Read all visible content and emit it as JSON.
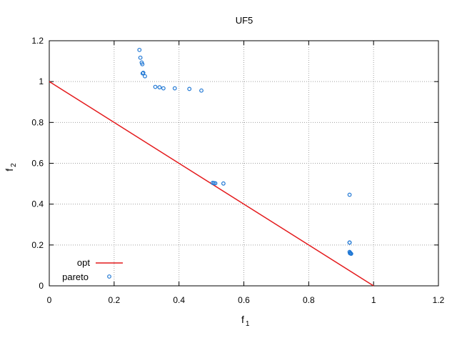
{
  "chart_data": {
    "type": "scatter",
    "title": "UF5",
    "xlabel": {
      "main": "f",
      "sub": "1"
    },
    "ylabel": {
      "main": "f",
      "sub": "2"
    },
    "xlim": [
      0,
      1.2
    ],
    "ylim": [
      0,
      1.2
    ],
    "x_ticks": [
      0,
      0.2,
      0.4,
      0.6,
      0.8,
      1,
      1.2
    ],
    "x_tick_labels": [
      "0",
      "0.2",
      "0.4",
      "0.6",
      "0.8",
      "1",
      "1.2"
    ],
    "y_ticks": [
      0,
      0.2,
      0.4,
      0.6,
      0.8,
      1,
      1.2
    ],
    "y_tick_labels": [
      "0",
      "0.2",
      "0.4",
      "0.6",
      "0.8",
      "1",
      "1.2"
    ],
    "grid": true,
    "legend": {
      "placement": "bottom-left"
    },
    "series": [
      {
        "name": "opt",
        "kind": "line",
        "color": "#e41a1c",
        "x": [
          0,
          1
        ],
        "y": [
          1,
          0
        ]
      },
      {
        "name": "pareto",
        "kind": "points",
        "color": "#1f77d4",
        "x": [
          0.278,
          0.281,
          0.285,
          0.287,
          0.29,
          0.288,
          0.295,
          0.327,
          0.34,
          0.352,
          0.387,
          0.432,
          0.469,
          0.504,
          0.508,
          0.512,
          0.537,
          0.926,
          0.926,
          0.926,
          0.926,
          0.927,
          0.928,
          0.929,
          0.931
        ],
        "y": [
          1.155,
          1.117,
          1.093,
          1.085,
          1.043,
          1.04,
          1.026,
          0.974,
          0.972,
          0.967,
          0.967,
          0.964,
          0.956,
          0.504,
          0.503,
          0.502,
          0.501,
          0.446,
          0.212,
          0.212,
          0.166,
          0.16,
          0.162,
          0.158,
          0.157
        ]
      }
    ]
  }
}
